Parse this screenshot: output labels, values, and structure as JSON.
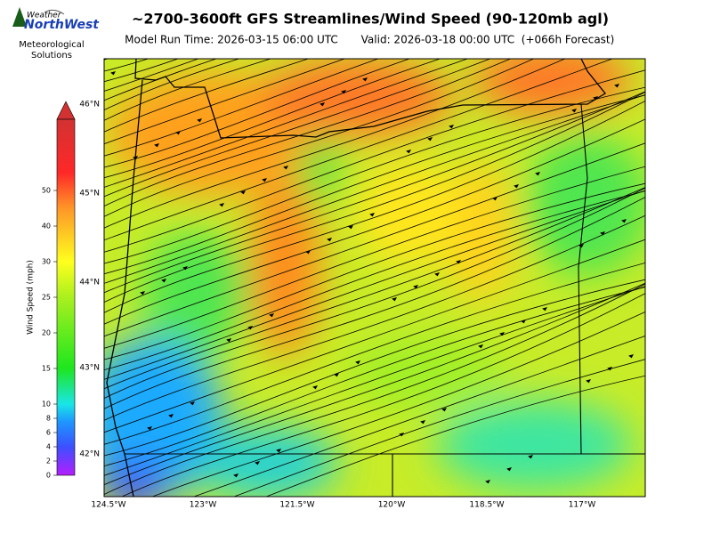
{
  "logo": {
    "top": "Weather",
    "brand": "NorthWest",
    "line1": "Meteorological",
    "line2": "Solutions"
  },
  "header": {
    "title": "~2700-3600ft GFS Streamlines/Wind Speed (90-120mb agl)",
    "model_run": "Model Run Time: 2026-03-15 06:00 UTC",
    "valid": "Valid: 2026-03-18 00:00 UTC  (+066h Forecast)"
  },
  "colorbar": {
    "label": "Wind Speed (mph)",
    "ticks": [
      0,
      2,
      4,
      6,
      8,
      10,
      15,
      20,
      25,
      30,
      40,
      50
    ]
  },
  "map": {
    "lat_labels": [
      "46°N",
      "45°N",
      "44°N",
      "43°N",
      "42°N"
    ],
    "lon_labels": [
      "124.5°W",
      "123°W",
      "121.5°W",
      "120°W",
      "118.5°W",
      "117°W"
    ]
  }
}
